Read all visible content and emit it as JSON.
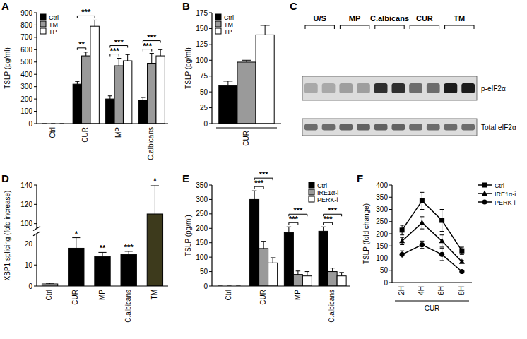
{
  "chart_data": [
    {
      "type": "bar",
      "title": "A",
      "ylabel": "TSLP (pg/ml)",
      "categories": [
        "Ctrl",
        "CUR",
        "MP",
        "C.albicans"
      ],
      "series": [
        {
          "name": "Ctrl",
          "color": "#000000",
          "values": [
            0,
            320,
            200,
            190
          ],
          "errors": [
            0,
            22,
            25,
            22
          ]
        },
        {
          "name": "TM",
          "color": "#9a9a9a",
          "values": [
            0,
            550,
            470,
            490
          ],
          "errors": [
            0,
            30,
            60,
            80
          ]
        },
        {
          "name": "TP",
          "color": "#ffffff",
          "values": [
            0,
            790,
            510,
            550
          ],
          "errors": [
            0,
            50,
            50,
            50
          ]
        }
      ],
      "ylim": [
        0,
        900
      ],
      "yticks": [
        0,
        100,
        200,
        300,
        400,
        500,
        600,
        700,
        800,
        900
      ],
      "legend": "top-left",
      "annotations": [
        {
          "text": "**",
          "category": "CUR",
          "series": [
            "Ctrl",
            "TM"
          ]
        },
        {
          "text": "***",
          "category": "CUR",
          "series": [
            "Ctrl",
            "TP"
          ]
        },
        {
          "text": "***",
          "category": "MP",
          "series": [
            "Ctrl",
            "TM"
          ]
        },
        {
          "text": "***",
          "category": "MP",
          "series": [
            "Ctrl",
            "TP"
          ]
        },
        {
          "text": "***",
          "category": "C.albicans",
          "series": [
            "Ctrl",
            "TM"
          ]
        },
        {
          "text": "***",
          "category": "C.albicans",
          "series": [
            "Ctrl",
            "TP"
          ]
        }
      ]
    },
    {
      "type": "bar",
      "title": "B",
      "ylabel": "TSLP (pg/ml)",
      "xlabel": "CUR",
      "categories": [
        null
      ],
      "series": [
        {
          "name": "Ctrl",
          "color": "#000000",
          "values": [
            60
          ],
          "errors": [
            7
          ]
        },
        {
          "name": "TM",
          "color": "#9a9a9a",
          "values": [
            97
          ],
          "errors": [
            3
          ]
        },
        {
          "name": "TP",
          "color": "#ffffff",
          "values": [
            140
          ],
          "errors": [
            15
          ]
        }
      ],
      "ylim": [
        0,
        175
      ],
      "yticks": [
        0,
        25,
        50,
        75,
        100,
        125,
        150,
        175
      ],
      "legend": "top-left"
    },
    {
      "type": "blot",
      "title": "C",
      "categories": [
        "U/S",
        "MP",
        "C.albicans",
        "CUR",
        "TM"
      ],
      "series": [
        {
          "name": "p-eIF2α",
          "values": [
            0.25,
            0.3,
            0.85,
            0.55,
            0.95
          ]
        },
        {
          "name": "Total eIF2α",
          "values": [
            0.55,
            0.6,
            0.6,
            0.55,
            0.55
          ]
        }
      ],
      "ylim": [
        0,
        1
      ]
    },
    {
      "type": "bar",
      "title": "D",
      "ylabel": "XBP1 splicing (fold increase)",
      "categories": [
        "Ctrl",
        "CUR",
        "MP",
        "C.albicans",
        "TM"
      ],
      "values": [
        1,
        18,
        14,
        15,
        110
      ],
      "errors": [
        0.3,
        5,
        2,
        1.5,
        30
      ],
      "colors": [
        "#ffffff",
        "#000000",
        "#000000",
        "#000000",
        "#3d3a1c"
      ],
      "ylim": [
        0,
        140
      ],
      "ybreak": [
        25,
        95
      ],
      "yticks": [
        0,
        10,
        20,
        100,
        120,
        140
      ],
      "annotations": [
        {
          "text": "*",
          "category": "CUR"
        },
        {
          "text": "**",
          "category": "MP"
        },
        {
          "text": "***",
          "category": "C.albicans"
        },
        {
          "text": "*",
          "category": "TM"
        }
      ]
    },
    {
      "type": "bar",
      "title": "E",
      "ylabel": "TSLP (pg/ml)",
      "categories": [
        "Ctrl",
        "CUR",
        "MP",
        "C.albicans"
      ],
      "series": [
        {
          "name": "Ctrl",
          "color": "#000000",
          "values": [
            0,
            300,
            185,
            190
          ],
          "errors": [
            0,
            30,
            20,
            15
          ]
        },
        {
          "name": "IRE1α-i",
          "color": "#9a9a9a",
          "values": [
            0,
            130,
            40,
            50
          ],
          "errors": [
            0,
            25,
            12,
            12
          ]
        },
        {
          "name": "PERK-i",
          "color": "#ffffff",
          "values": [
            0,
            80,
            35,
            35
          ],
          "errors": [
            0,
            18,
            15,
            12
          ]
        }
      ],
      "ylim": [
        0,
        350
      ],
      "yticks": [
        0,
        50,
        100,
        150,
        200,
        250,
        300,
        350
      ],
      "legend": "top-right",
      "annotations": [
        {
          "text": "***",
          "category": "CUR",
          "series": [
            "Ctrl",
            "IRE1α-i"
          ]
        },
        {
          "text": "***",
          "category": "CUR",
          "series": [
            "Ctrl",
            "PERK-i"
          ]
        },
        {
          "text": "***",
          "category": "MP",
          "series": [
            "Ctrl",
            "IRE1α-i"
          ]
        },
        {
          "text": "***",
          "category": "MP",
          "series": [
            "Ctrl",
            "PERK-i"
          ]
        },
        {
          "text": "***",
          "category": "C.albicans",
          "series": [
            "Ctrl",
            "IRE1α-i"
          ]
        },
        {
          "text": "***",
          "category": "C.albicans",
          "series": [
            "Ctrl",
            "PERK-i"
          ]
        }
      ]
    },
    {
      "type": "line",
      "title": "F",
      "ylabel": "TSLP (fold change)",
      "xlabel": "CUR",
      "categories": [
        "2H",
        "4H",
        "6H",
        "8H"
      ],
      "series": [
        {
          "name": "Ctrl",
          "color": "#000000",
          "marker": "square",
          "values": [
            215,
            335,
            255,
            130
          ],
          "errors": [
            20,
            35,
            45,
            15
          ]
        },
        {
          "name": "IRE1α-i",
          "color": "#000000",
          "marker": "triangle",
          "values": [
            170,
            245,
            170,
            85
          ],
          "errors": [
            15,
            25,
            25,
            5
          ]
        },
        {
          "name": "PERK-i",
          "color": "#000000",
          "marker": "circle",
          "values": [
            115,
            155,
            115,
            45
          ],
          "errors": [
            15,
            15,
            25,
            5
          ]
        }
      ],
      "ylim": [
        0,
        400
      ],
      "yticks": [
        0,
        50,
        100,
        150,
        200,
        250,
        300,
        350,
        400
      ],
      "legend": "right"
    }
  ]
}
